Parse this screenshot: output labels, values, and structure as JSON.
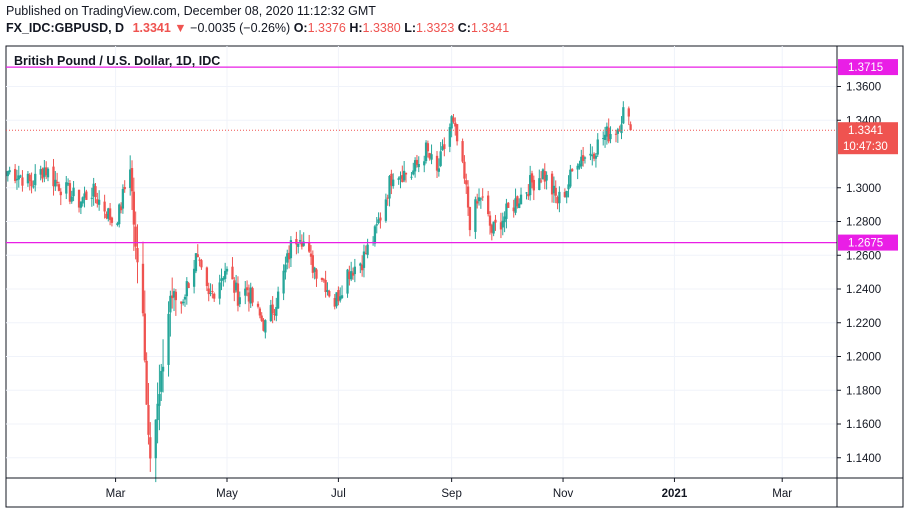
{
  "header": {
    "published": "Published on TradingView.com, December 08, 2020 11:12:32 GMT",
    "symbol": "FX_IDC:GBPUSD, D",
    "last": "1.3341",
    "change_arrow": "▼",
    "change": "−0.0035 (−0.26%)",
    "o_label": "O:",
    "o_value": "1.3376",
    "h_label": "H:",
    "h_value": "1.3380",
    "l_label": "L:",
    "l_value": "1.3323",
    "c_label": "C:",
    "c_value": "1.3341"
  },
  "colors": {
    "up": "#26a69a",
    "down": "#ef5350",
    "hline": "#e91ee6",
    "price_tag": "#ef5350",
    "grid": "#f0f3fa",
    "axis": "#131722"
  },
  "chart_data": {
    "type": "candlestick",
    "title": "British Pound / U.S. Dollar, 1D, IDC",
    "ylim": [
      1.128,
      1.384
    ],
    "y_ticks": [
      "1.3600",
      "1.3400",
      "1.3000",
      "1.2800",
      "1.2600",
      "1.2400",
      "1.2200",
      "1.2000",
      "1.1800",
      "1.1600",
      "1.1400"
    ],
    "x_ticks": [
      "Mar",
      "May",
      "Jul",
      "Sep",
      "Nov",
      "2021",
      "Mar"
    ],
    "horizontal_lines": [
      {
        "value": 1.3715,
        "label": "1.3715"
      },
      {
        "value": 1.2675,
        "label": "1.2675"
      }
    ],
    "last_price": {
      "value": 1.3341,
      "label": "1.3341",
      "countdown": "10:47:30"
    },
    "anchors": [
      {
        "date": "2020-01-02",
        "value": 1.31
      },
      {
        "date": "2020-01-08",
        "value": 1.308
      },
      {
        "date": "2020-01-15",
        "value": 1.302
      },
      {
        "date": "2020-01-22",
        "value": 1.312
      },
      {
        "date": "2020-01-27",
        "value": 1.305
      },
      {
        "date": "2020-02-03",
        "value": 1.298
      },
      {
        "date": "2020-02-10",
        "value": 1.292
      },
      {
        "date": "2020-02-17",
        "value": 1.298
      },
      {
        "date": "2020-02-24",
        "value": 1.288
      },
      {
        "date": "2020-02-28",
        "value": 1.281
      },
      {
        "date": "2020-03-03",
        "value": 1.285
      },
      {
        "date": "2020-03-09",
        "value": 1.314
      },
      {
        "date": "2020-03-12",
        "value": 1.262
      },
      {
        "date": "2020-03-16",
        "value": 1.23
      },
      {
        "date": "2020-03-18",
        "value": 1.172
      },
      {
        "date": "2020-03-20",
        "value": 1.145
      },
      {
        "date": "2020-03-25",
        "value": 1.176
      },
      {
        "date": "2020-03-31",
        "value": 1.236
      },
      {
        "date": "2020-04-06",
        "value": 1.232
      },
      {
        "date": "2020-04-14",
        "value": 1.258
      },
      {
        "date": "2020-04-21",
        "value": 1.234
      },
      {
        "date": "2020-04-30",
        "value": 1.252
      },
      {
        "date": "2020-05-07",
        "value": 1.236
      },
      {
        "date": "2020-05-12",
        "value": 1.24
      },
      {
        "date": "2020-05-18",
        "value": 1.225
      },
      {
        "date": "2020-05-22",
        "value": 1.218
      },
      {
        "date": "2020-05-29",
        "value": 1.236
      },
      {
        "date": "2020-06-05",
        "value": 1.265
      },
      {
        "date": "2020-06-10",
        "value": 1.274
      },
      {
        "date": "2020-06-16",
        "value": 1.255
      },
      {
        "date": "2020-06-22",
        "value": 1.248
      },
      {
        "date": "2020-06-29",
        "value": 1.232
      },
      {
        "date": "2020-07-06",
        "value": 1.25
      },
      {
        "date": "2020-07-14",
        "value": 1.257
      },
      {
        "date": "2020-07-21",
        "value": 1.272
      },
      {
        "date": "2020-07-31",
        "value": 1.31
      },
      {
        "date": "2020-08-10",
        "value": 1.308
      },
      {
        "date": "2020-08-18",
        "value": 1.322
      },
      {
        "date": "2020-08-24",
        "value": 1.308
      },
      {
        "date": "2020-09-01",
        "value": 1.34
      },
      {
        "date": "2020-09-04",
        "value": 1.327
      },
      {
        "date": "2020-09-09",
        "value": 1.298
      },
      {
        "date": "2020-09-11",
        "value": 1.28
      },
      {
        "date": "2020-09-17",
        "value": 1.295
      },
      {
        "date": "2020-09-23",
        "value": 1.274
      },
      {
        "date": "2020-09-29",
        "value": 1.282
      },
      {
        "date": "2020-10-07",
        "value": 1.293
      },
      {
        "date": "2020-10-14",
        "value": 1.302
      },
      {
        "date": "2020-10-21",
        "value": 1.309
      },
      {
        "date": "2020-10-29",
        "value": 1.292
      },
      {
        "date": "2020-11-03",
        "value": 1.3
      },
      {
        "date": "2020-11-09",
        "value": 1.318
      },
      {
        "date": "2020-11-16",
        "value": 1.32
      },
      {
        "date": "2020-11-23",
        "value": 1.33
      },
      {
        "date": "2020-12-01",
        "value": 1.336
      },
      {
        "date": "2020-12-04",
        "value": 1.345
      },
      {
        "date": "2020-12-07",
        "value": 1.338
      },
      {
        "date": "2020-12-08",
        "value": 1.3341
      }
    ]
  }
}
